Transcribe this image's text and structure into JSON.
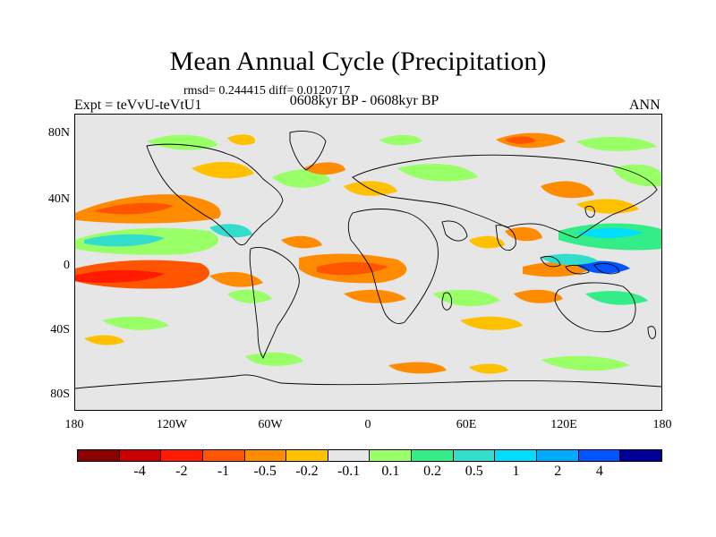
{
  "title": "Mean Annual Cycle (Precipitation)",
  "stats": "rmsd= 0.244415 diff= 0.0120717",
  "left_label": "Expt = teVvU-teVtU1",
  "center_label": "0608kyr BP - 0608kyr BP",
  "right_label": "ANN",
  "map": {
    "background_color": "#e6e6e6",
    "lat_ticks": [
      "80N",
      "40N",
      "0",
      "40S",
      "80S"
    ],
    "lon_ticks": [
      "180",
      "120W",
      "60W",
      "0",
      "60E",
      "120E",
      "180"
    ]
  },
  "colorbar": {
    "colors": [
      "#8b0000",
      "#cc0000",
      "#ff1a00",
      "#ff5500",
      "#ff8c00",
      "#ffc000",
      "#e6e6e6",
      "#99ff66",
      "#33ee88",
      "#33ddcc",
      "#00ddff",
      "#00aaff",
      "#0055ff",
      "#000099"
    ],
    "labels": [
      "-4",
      "-2",
      "-1",
      "-0.5",
      "-0.2",
      "-0.1",
      "0.1",
      "0.2",
      "0.5",
      "1",
      "2",
      "4"
    ]
  }
}
